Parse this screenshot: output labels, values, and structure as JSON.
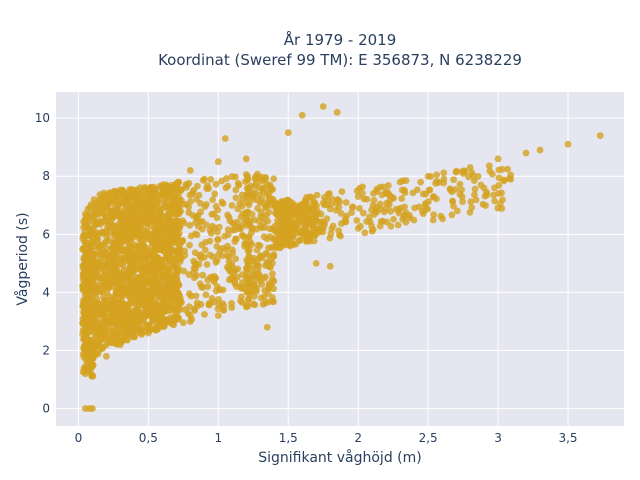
{
  "chart_data": {
    "type": "scatter",
    "title_line1": "År 1979 - 2019",
    "title_line2": "Koordinat (Sweref 99 TM): E 356873, N 6238229",
    "xlabel": "Signifikant våghöjd (m)",
    "ylabel": "Vågperiod (s)",
    "xlim": [
      -0.16,
      3.9
    ],
    "ylim": [
      -0.6,
      10.9
    ],
    "x_ticks": [
      0,
      0.5,
      1,
      1.5,
      2,
      2.5,
      3,
      3.5
    ],
    "x_tick_labels": [
      "0",
      "0,5",
      "1",
      "1,5",
      "2",
      "2,5",
      "3",
      "3,5"
    ],
    "y_ticks": [
      0,
      2,
      4,
      6,
      8,
      10
    ],
    "y_tick_labels": [
      "0",
      "2",
      "4",
      "6",
      "8",
      "10"
    ],
    "grid": true,
    "legend": "none",
    "marker_color": "#d4a320",
    "plot_background": "#e5e6ef",
    "sample_points": [
      {
        "x": 0.05,
        "y": 0
      },
      {
        "x": 0.08,
        "y": 0
      },
      {
        "x": 0.1,
        "y": 0
      },
      {
        "x": 0.05,
        "y": 1.2
      },
      {
        "x": 0.1,
        "y": 1.5
      },
      {
        "x": 0.2,
        "y": 1.8
      },
      {
        "x": 0.3,
        "y": 2.2
      },
      {
        "x": 0.5,
        "y": 2.6
      },
      {
        "x": 0.8,
        "y": 3.0
      },
      {
        "x": 0.05,
        "y": 5.5
      },
      {
        "x": 0.1,
        "y": 6.0
      },
      {
        "x": 0.3,
        "y": 6.8
      },
      {
        "x": 0.5,
        "y": 7.5
      },
      {
        "x": 0.8,
        "y": 8.2
      },
      {
        "x": 1.0,
        "y": 8.5
      },
      {
        "x": 1.2,
        "y": 8.6
      },
      {
        "x": 1.5,
        "y": 9.5
      },
      {
        "x": 1.6,
        "y": 10.1
      },
      {
        "x": 1.75,
        "y": 10.4
      },
      {
        "x": 1.85,
        "y": 10.2
      },
      {
        "x": 1.05,
        "y": 9.3
      },
      {
        "x": 1.5,
        "y": 5.8
      },
      {
        "x": 1.7,
        "y": 5.0
      },
      {
        "x": 1.8,
        "y": 4.9
      },
      {
        "x": 1.3,
        "y": 4.4
      },
      {
        "x": 1.2,
        "y": 3.5
      },
      {
        "x": 1.0,
        "y": 3.2
      },
      {
        "x": 2.0,
        "y": 7.3
      },
      {
        "x": 2.3,
        "y": 7.8
      },
      {
        "x": 2.5,
        "y": 8.0
      },
      {
        "x": 2.8,
        "y": 8.3
      },
      {
        "x": 3.0,
        "y": 8.6
      },
      {
        "x": 3.2,
        "y": 8.8
      },
      {
        "x": 3.3,
        "y": 8.9
      },
      {
        "x": 3.5,
        "y": 9.1
      },
      {
        "x": 3.73,
        "y": 9.4
      },
      {
        "x": 1.35,
        "y": 2.8
      },
      {
        "x": 0.9,
        "y": 7.9
      },
      {
        "x": 0.7,
        "y": 7.7
      }
    ]
  }
}
